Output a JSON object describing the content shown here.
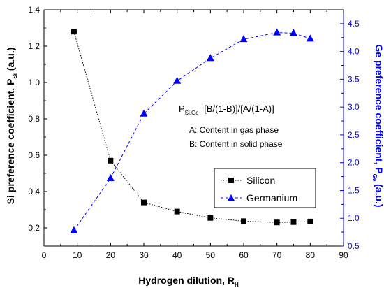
{
  "chart_data": {
    "type": "line",
    "x_axis": {
      "label": "Hydrogen dilution, R",
      "label_sub": "H",
      "range": [
        0,
        90
      ],
      "ticks": [
        0,
        10,
        20,
        30,
        40,
        50,
        60,
        70,
        80,
        90
      ]
    },
    "y_axis_left": {
      "label": "Si preference coefficient, P",
      "label_sub": "Si",
      "label_suffix": " (a.u.)",
      "range": [
        0.1,
        1.4
      ],
      "ticks": [
        0.2,
        0.4,
        0.6,
        0.8,
        1.0,
        1.2,
        1.4
      ],
      "tick_labels": [
        "0.2",
        "0.4",
        "0.6",
        "0.8",
        "1.0",
        "1.2",
        "1.4"
      ]
    },
    "y_axis_right": {
      "label": "Ge preference coefficient, P",
      "label_sub": "Ge",
      "label_suffix": " (a.u.)",
      "range": [
        0.5,
        4.75
      ],
      "ticks": [
        0.5,
        1.0,
        1.5,
        2.0,
        2.5,
        3.0,
        3.5,
        4.0,
        4.5
      ],
      "tick_labels": [
        "0.5",
        "1.0",
        "1.5",
        "2.0",
        "2.5",
        "3.0",
        "3.5",
        "4.0",
        "4.5"
      ],
      "color": "#0000ff"
    },
    "series": [
      {
        "name": "Silicon",
        "axis": "left",
        "color": "#000000",
        "marker": "square",
        "line_style": "dotted",
        "x": [
          9,
          20,
          30,
          40,
          50,
          60,
          70,
          75,
          80
        ],
        "y": [
          1.28,
          0.57,
          0.34,
          0.29,
          0.255,
          0.237,
          0.23,
          0.232,
          0.235
        ]
      },
      {
        "name": "Germanium",
        "axis": "right",
        "color": "#0000ff",
        "marker": "triangle",
        "line_style": "dashed",
        "x": [
          9,
          20,
          30,
          40,
          50,
          60,
          70,
          75,
          80
        ],
        "y": [
          0.78,
          1.72,
          2.88,
          3.47,
          3.88,
          4.22,
          4.34,
          4.33,
          4.23
        ]
      }
    ],
    "annotations": {
      "formula_lhs": "P",
      "formula_lhs_sub": "Si,Ge",
      "formula_rhs": "=[B/(1-B)]/[A/(1-A)]",
      "line_a": "A: Content in gas phase",
      "line_b": "B: Content in solid phase"
    },
    "legend_position": "center-right"
  }
}
